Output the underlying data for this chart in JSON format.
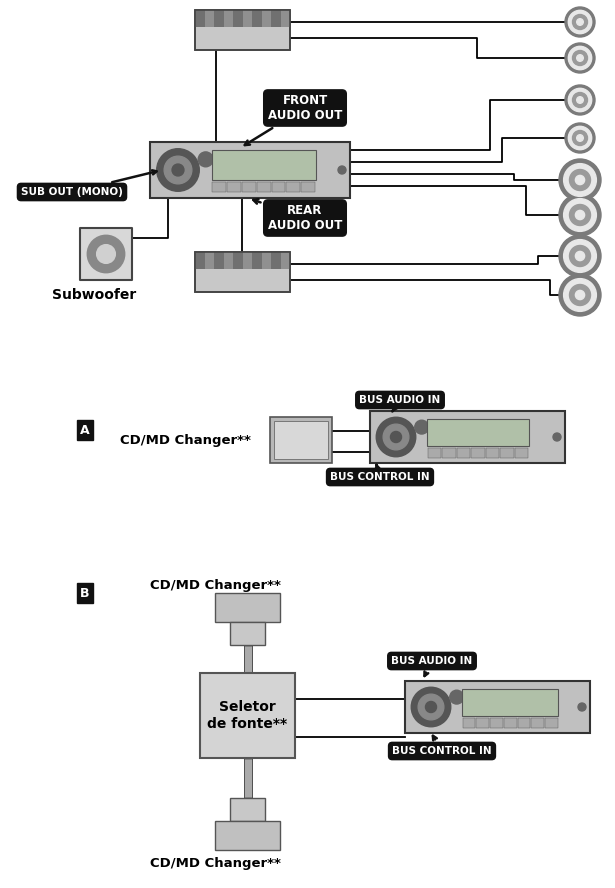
{
  "bg_color": "#ffffff",
  "line_color": "#000000",
  "label_front": "FRONT\nAUDIO OUT",
  "label_rear": "REAR\nAUDIO OUT",
  "label_sub_out": "SUB OUT (MONO)",
  "label_subwoofer": "Subwoofer",
  "label_bus_audio_in_a": "BUS AUDIO IN",
  "label_bus_control_in_a": "BUS CONTROL IN",
  "label_cdmd_a": "CD/MD Changer**",
  "label_A": "A",
  "label_B": "B",
  "label_cdmd_b1": "CD/MD Changer**",
  "label_cdmd_b2": "CD/MD Changer**",
  "label_bus_audio_in_b": "BUS AUDIO IN",
  "label_bus_control_in_b": "BUS CONTROL IN",
  "label_seletor": "Seletor\nde fonte**",
  "figw": 6.15,
  "figh": 8.88,
  "dpi": 100
}
